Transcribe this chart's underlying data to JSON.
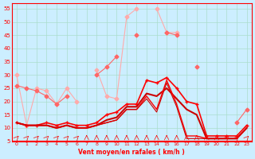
{
  "x": [
    0,
    1,
    2,
    3,
    4,
    5,
    6,
    7,
    8,
    9,
    10,
    11,
    12,
    13,
    14,
    15,
    16,
    17,
    18,
    19,
    20,
    21,
    22,
    23
  ],
  "background_color": "#cceeff",
  "grid_color": "#aaddcc",
  "xlabel": "Vent moyen/en rafales ( km/h )",
  "ylim": [
    5,
    57
  ],
  "yticks": [
    5,
    10,
    15,
    20,
    25,
    30,
    35,
    40,
    45,
    50,
    55
  ],
  "xlim": [
    -0.5,
    23.5
  ],
  "line1_color": "#ff6666",
  "line2_color": "#ffaaaa",
  "line3_color": "#ff0000",
  "line4_color": "#cc0000",
  "line5_color": "#ff9999",
  "line6_color": "#ff3333",
  "series1": [
    30,
    11,
    25,
    24,
    19,
    25,
    20,
    null,
    32,
    22,
    21,
    52,
    55,
    null,
    55,
    46,
    46,
    null,
    null,
    null,
    null,
    null,
    null,
    null
  ],
  "series2": [
    26,
    25,
    24,
    22,
    19,
    22,
    null,
    null,
    30,
    33,
    37,
    null,
    45,
    null,
    null,
    46,
    45,
    null,
    33,
    null,
    null,
    null,
    12,
    17
  ],
  "series3": [
    12,
    11,
    11,
    12,
    11,
    12,
    11,
    11,
    12,
    15,
    16,
    19,
    19,
    28,
    27,
    29,
    25,
    20,
    19,
    7,
    7,
    7,
    7,
    11
  ],
  "series4": [
    12,
    11,
    11,
    11,
    10,
    11,
    10,
    10,
    11,
    13,
    14,
    18,
    18,
    23,
    22,
    25,
    21,
    17,
    15,
    6,
    6,
    6,
    6,
    10
  ],
  "series5": [
    12,
    11,
    11,
    11,
    10,
    11,
    10,
    10,
    11,
    12,
    13,
    17,
    17,
    22,
    17,
    28,
    19,
    7,
    7,
    6,
    6,
    6,
    6,
    10
  ],
  "series6": [
    12,
    11,
    11,
    11,
    10,
    11,
    10,
    10,
    11,
    12,
    13,
    17,
    17,
    21,
    16,
    27,
    18,
    6,
    6,
    6,
    6,
    6,
    6,
    10
  ],
  "arrows": [
    45,
    45,
    45,
    45,
    45,
    45,
    45,
    90,
    90,
    90,
    90,
    90,
    90,
    90,
    90,
    90,
    90,
    90,
    90,
    90,
    90,
    45,
    45,
    45
  ]
}
